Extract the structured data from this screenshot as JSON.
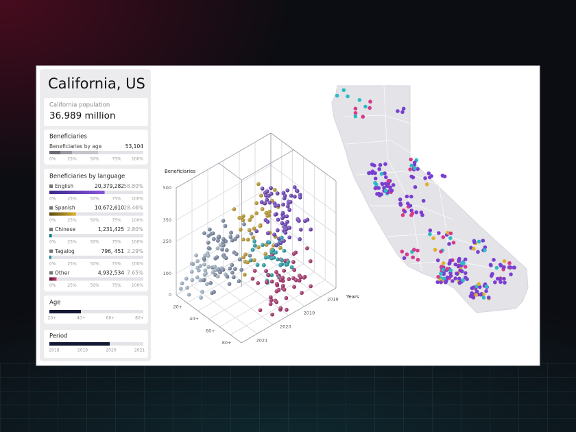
{
  "header": {
    "title": "California, US"
  },
  "population": {
    "label": "California population",
    "value": "36.989 million"
  },
  "beneficiaries": {
    "title": "Beneficiaries",
    "row_label": "Beneficiaries by age",
    "row_value": "53,104"
  },
  "scale_ticks": [
    "0%",
    "25%",
    "50%",
    "75%",
    "100%"
  ],
  "languages": {
    "title": "Beneficiaries by language",
    "rows": [
      {
        "name": "English",
        "count": "20,379,282",
        "share": 58.8,
        "share_label": "58.80%",
        "colors": [
          "#3a2a8a",
          "#8b55dc"
        ]
      },
      {
        "name": "Spanish",
        "count": "10,672,610",
        "share": 28.46,
        "share_label": "28.46%",
        "colors": [
          "#5a4a10",
          "#e0b432"
        ]
      },
      {
        "name": "Chinese",
        "count": "1,231,425",
        "share": 2.8,
        "share_label": "2.80%",
        "colors": [
          "#0b4a55",
          "#27b3be"
        ]
      },
      {
        "name": "Tagalog",
        "count": "796, 451",
        "share": 2.29,
        "share_label": "2.29%",
        "colors": [
          "#13606e",
          "#3fc3d0"
        ]
      },
      {
        "name": "Other",
        "count": "4,932,534",
        "share": 7.65,
        "share_label": "7.65%",
        "colors": [
          "#5a1030",
          "#c23d7a"
        ]
      }
    ]
  },
  "age": {
    "title": "Age",
    "labels": [
      "20+",
      "40+",
      "60+",
      "80+"
    ]
  },
  "period": {
    "title": "Period",
    "labels": [
      "2018",
      "2019",
      "2020",
      "2021"
    ]
  },
  "chart3d": {
    "y_title": "Beneficiaries",
    "ylim": [
      0,
      500
    ],
    "yticks": [
      0,
      100,
      250,
      350,
      500
    ],
    "age_labels": [
      "20+",
      "40+",
      "60+",
      "80+"
    ],
    "year_labels": [
      "2018",
      "2019",
      "2020",
      "2021"
    ],
    "year_title": "Years"
  }
}
